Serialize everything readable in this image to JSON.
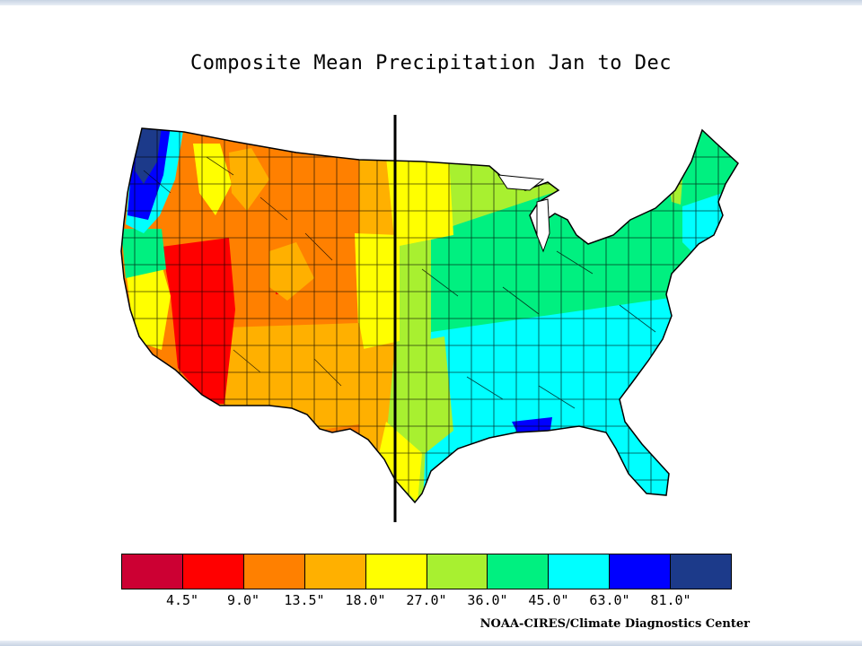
{
  "title": "Composite Mean Precipitation Jan to Dec",
  "credit": "NOAA-CIRES/Climate Diagnostics Center",
  "legend": {
    "colors": [
      "#cc0033",
      "#ff0000",
      "#ff8000",
      "#ffb000",
      "#ffff00",
      "#a8f030",
      "#00f080",
      "#00ffff",
      "#0000ff",
      "#1c3a8a"
    ],
    "labels": [
      "4.5\"",
      "9.0\"",
      "13.5\"",
      "18.0\"",
      "27.0\"",
      "36.0\"",
      "45.0\"",
      "63.0\"",
      "81.0\""
    ]
  },
  "divider": "vertical black line (near 100°W meridian)"
}
